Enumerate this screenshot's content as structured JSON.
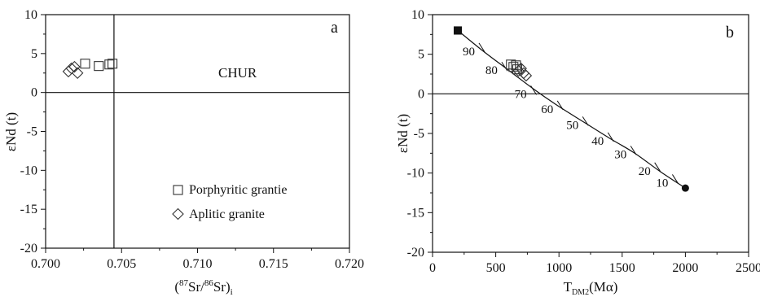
{
  "chart_data": [
    {
      "type": "scatter",
      "panel_label": "a",
      "title": "",
      "xlabel_parts": {
        "open": "(",
        "sup1": "87",
        "mid": "Sr/",
        "sup2": "86",
        "end": "Sr)",
        "sub": "i"
      },
      "ylabel": "εNd (t)",
      "xlim": [
        0.7,
        0.72
      ],
      "ylim": [
        -20,
        10
      ],
      "xticks": [
        0.7,
        0.705,
        0.71,
        0.715,
        0.72
      ],
      "xtick_labels": [
        "0.700",
        "0.705",
        "0.710",
        "0.715",
        "0.720"
      ],
      "yticks": [
        -20,
        -15,
        -10,
        -5,
        0,
        5,
        10
      ],
      "ytick_labels": [
        "-20",
        "-15",
        "-10",
        "-5",
        "0",
        "5",
        "10"
      ],
      "grid": false,
      "reference_lines": {
        "hline_y": 0,
        "vline_x": 0.7045
      },
      "annotation": "CHUR",
      "legend_position": "bottom-right",
      "series": [
        {
          "name": "Porphyritic grantie",
          "marker": "square",
          "x": [
            0.7026,
            0.7035,
            0.7042,
            0.7044
          ],
          "y": [
            3.7,
            3.4,
            3.6,
            3.7
          ]
        },
        {
          "name": "Aplitic granite",
          "marker": "diamond",
          "x": [
            0.7015,
            0.7017,
            0.7019,
            0.7021
          ],
          "y": [
            2.7,
            3.1,
            3.3,
            2.5
          ]
        }
      ]
    },
    {
      "type": "scatter",
      "panel_label": "b",
      "title": "",
      "xlabel_parts": {
        "main": "T",
        "sub": "DM2",
        "unit": "(Mα)"
      },
      "ylabel": "εNd (t)",
      "xlim": [
        0,
        2500
      ],
      "ylim": [
        -20,
        10
      ],
      "xticks": [
        0,
        500,
        1000,
        1500,
        2000,
        2500
      ],
      "xtick_labels": [
        "0",
        "500",
        "1000",
        "1500",
        "2000",
        "2500"
      ],
      "yticks": [
        -20,
        -15,
        -10,
        -5,
        0,
        5,
        10
      ],
      "ytick_labels": [
        "-20",
        "-15",
        "-10",
        "-5",
        "0",
        "5",
        "10"
      ],
      "grid": false,
      "reference_lines": {
        "hline_y": 0
      },
      "curve": {
        "x": [
          200,
          400,
          600,
          800,
          1000,
          1200,
          1400,
          1600,
          1800,
          2000
        ],
        "y": [
          8.0,
          5.4,
          3.0,
          0.6,
          -1.6,
          -3.6,
          -5.6,
          -7.5,
          -9.8,
          -11.9
        ],
        "start_marker": {
          "x": 200,
          "y": 8.0,
          "shape": "filled-square"
        },
        "end_marker": {
          "x": 2000,
          "y": -11.9,
          "shape": "filled-circle"
        },
        "graduations": [
          {
            "label": "90",
            "x": 380,
            "y": 5.7
          },
          {
            "label": "80",
            "x": 560,
            "y": 3.3
          },
          {
            "label": "70",
            "x": 790,
            "y": 0.3
          },
          {
            "label": "60",
            "x": 1000,
            "y": -1.6
          },
          {
            "label": "50",
            "x": 1200,
            "y": -3.6
          },
          {
            "label": "40",
            "x": 1400,
            "y": -5.6
          },
          {
            "label": "30",
            "x": 1580,
            "y": -7.3
          },
          {
            "label": "20",
            "x": 1770,
            "y": -9.4
          },
          {
            "label": "10",
            "x": 1910,
            "y": -10.9
          }
        ]
      },
      "series": [
        {
          "marker": "square",
          "x": [
            620,
            640,
            660,
            670
          ],
          "y": [
            3.7,
            3.4,
            3.6,
            3.1
          ]
        },
        {
          "marker": "diamond",
          "x": [
            680,
            700,
            720,
            740
          ],
          "y": [
            2.9,
            3.2,
            2.6,
            2.3
          ]
        }
      ]
    }
  ]
}
